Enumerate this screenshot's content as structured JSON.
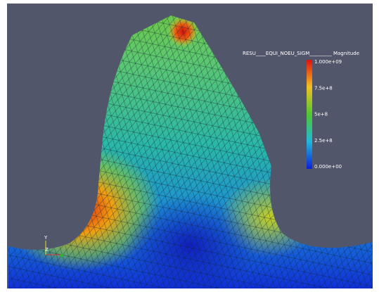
{
  "colorbar": {
    "title": "RESU____EQUI_NOEU_SIGM_________ Magnitude",
    "labels": [
      "1.000e+09",
      "7.5e+8",
      "5e+8",
      "2.5e+8",
      "0.000e+00"
    ]
  },
  "axes": {
    "y": "Y",
    "z": "Z"
  }
}
